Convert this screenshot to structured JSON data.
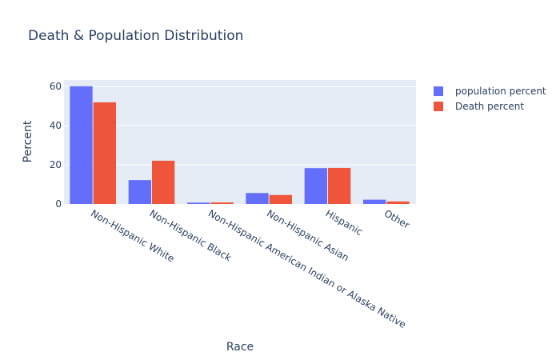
{
  "chart_data": {
    "type": "bar",
    "title": "Death & Population Distribution",
    "xlabel": "Race",
    "ylabel": "Percent",
    "categories": [
      "Non-Hispanic White",
      "Non-Hispanic Black",
      "Non-Hispanic American Indian or Alaska Native",
      "Non-Hispanic Asian",
      "Hispanic",
      "Other"
    ],
    "series": [
      {
        "name": "population percent",
        "color": "#636efa",
        "values": [
          60.1,
          12.2,
          0.7,
          5.6,
          18.3,
          2.2
        ]
      },
      {
        "name": "Death percent",
        "color": "#ef553b",
        "values": [
          51.9,
          22.1,
          0.8,
          4.6,
          18.4,
          1.3
        ]
      }
    ],
    "ylim": [
      0,
      63.3
    ],
    "yticks": [
      0,
      20,
      40,
      60
    ],
    "grid": true,
    "legend_position": "top-right",
    "plot_bg": "#e5ecf6"
  }
}
